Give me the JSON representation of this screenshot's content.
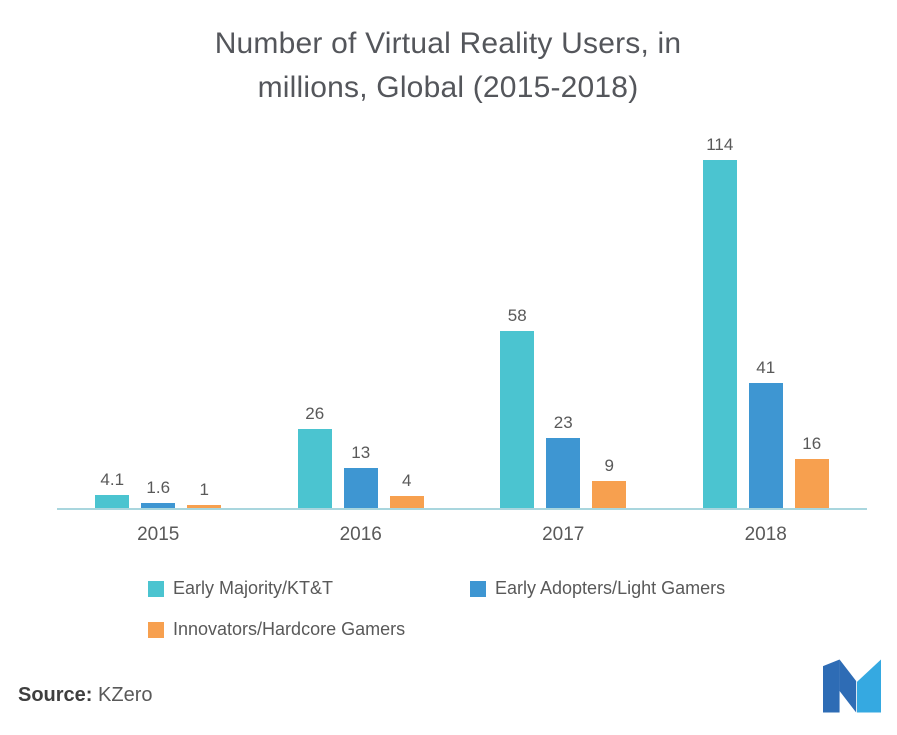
{
  "chart_data": {
    "type": "bar",
    "title": "Number of Virtual Reality Users, in millions, Global (2015-2018)",
    "categories": [
      "2015",
      "2016",
      "2017",
      "2018"
    ],
    "series": [
      {
        "name": "Early Majority/KT&T",
        "color": "#4BC4D0",
        "values": [
          4.1,
          26,
          58,
          114
        ]
      },
      {
        "name": "Early Adopters/Light Gamers",
        "color": "#3E96D2",
        "values": [
          1.6,
          13,
          23,
          41
        ]
      },
      {
        "name": "Innovators/Hardcore Gamers",
        "color": "#F7A04F",
        "values": [
          1,
          4,
          9,
          16
        ]
      }
    ],
    "ylim": [
      0,
      114
    ],
    "grid": false,
    "legend_position": "bottom",
    "value_labels": true
  },
  "title": {
    "line1": "Number of Virtual Reality Users, in",
    "line2": "millions, Global (2015-2018)"
  },
  "source": {
    "label": "Source:",
    "value": "KZero"
  },
  "colors": {
    "title_text": "#54565B",
    "label_text": "#595959",
    "axis_line": "#A9D6DE",
    "logo_dark": "#2E6CB5",
    "logo_light": "#35A9E1"
  },
  "icons": {
    "brand_logo": "m-logo"
  }
}
